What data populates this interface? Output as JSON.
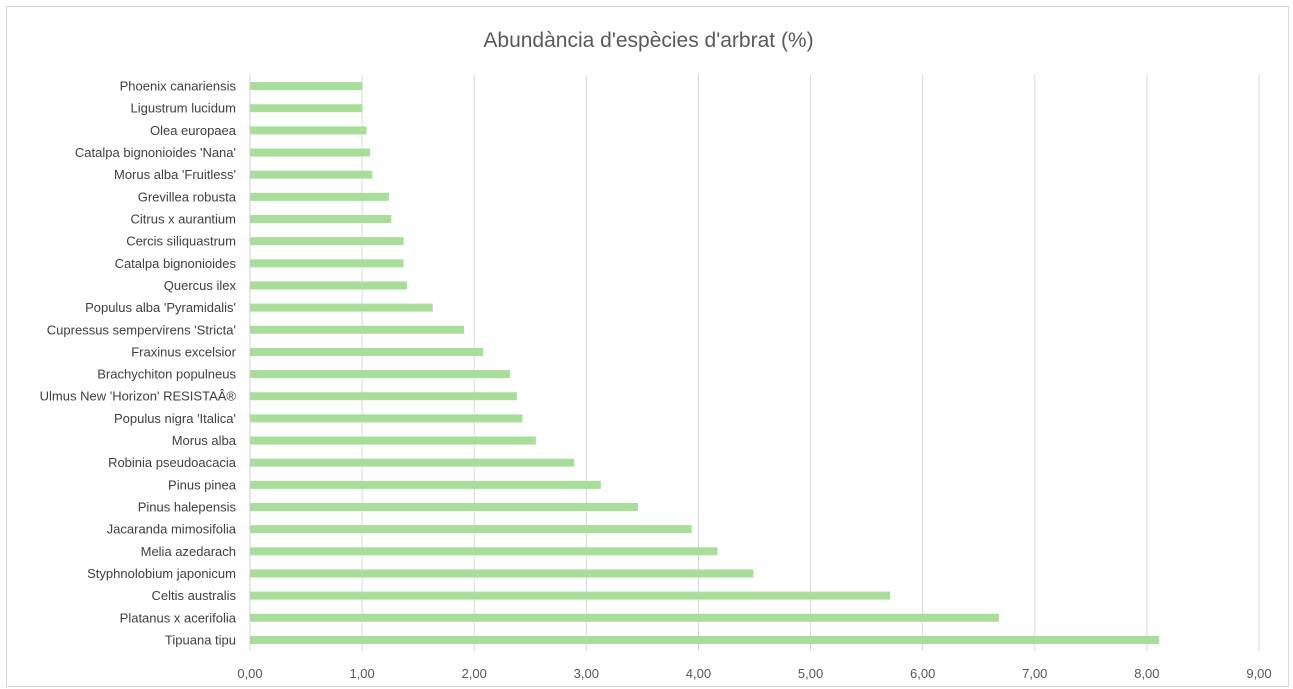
{
  "chart_data": {
    "type": "bar",
    "orientation": "horizontal",
    "title": "Abundància d'espècies d'arbrat (%)",
    "categories": [
      "Phoenix canariensis",
      "Ligustrum lucidum",
      "Olea europaea",
      "Catalpa bignonioides 'Nana'",
      "Morus alba 'Fruitless'",
      "Grevillea robusta",
      "Citrus x aurantium",
      "Cercis siliquastrum",
      "Catalpa bignonioides",
      "Quercus ilex",
      "Populus alba 'Pyramidalis'",
      "Cupressus sempervirens 'Stricta'",
      "Fraxinus excelsior",
      "Brachychiton populneus",
      "Ulmus New 'Horizon' RESISTAÂ®",
      "Populus nigra 'Italica'",
      "Morus alba",
      "Robinia pseudoacacia",
      "Pinus pinea",
      "Pinus halepensis",
      "Jacaranda mimosifolia",
      "Melia azedarach",
      "Styphnolobium japonicum",
      "Celtis australis",
      "Platanus x acerifolia",
      "Tipuana tipu"
    ],
    "values": [
      1.0,
      1.0,
      1.04,
      1.07,
      1.09,
      1.24,
      1.26,
      1.37,
      1.37,
      1.4,
      1.63,
      1.91,
      2.08,
      2.32,
      2.38,
      2.43,
      2.55,
      2.89,
      3.13,
      3.46,
      3.94,
      4.17,
      4.49,
      5.71,
      6.68,
      8.11
    ],
    "xlim": [
      0,
      9
    ],
    "xticks": [
      "0,00",
      "1,00",
      "2,00",
      "3,00",
      "4,00",
      "5,00",
      "6,00",
      "7,00",
      "8,00",
      "9,00"
    ],
    "grid": true,
    "legend": "none",
    "bar_color": "#a9dd9a",
    "grid_color": "#d9d9d9"
  }
}
